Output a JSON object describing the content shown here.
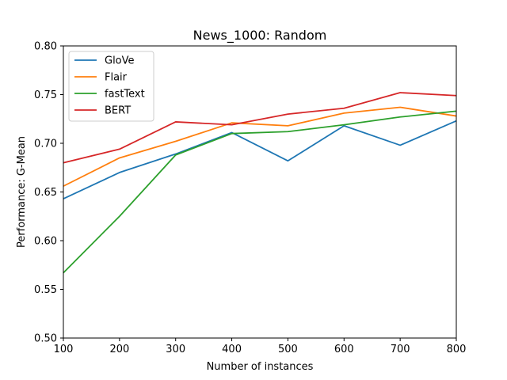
{
  "chart_data": {
    "type": "line",
    "title": "News_1000: Random",
    "xlabel": "Number of instances",
    "ylabel": "Performance: G-Mean",
    "xlim": [
      100,
      800
    ],
    "ylim": [
      0.5,
      0.8
    ],
    "x": [
      100,
      200,
      300,
      400,
      500,
      600,
      700,
      800
    ],
    "x_ticks": [
      "100",
      "200",
      "300",
      "400",
      "500",
      "600",
      "700",
      "800"
    ],
    "y_ticks": [
      "0.50",
      "0.55",
      "0.60",
      "0.65",
      "0.70",
      "0.75",
      "0.80"
    ],
    "grid": false,
    "legend_position": "upper-left",
    "series": [
      {
        "name": "GloVe",
        "color": "#1f77b4",
        "values": [
          0.643,
          0.67,
          0.689,
          0.711,
          0.682,
          0.718,
          0.698,
          0.723
        ]
      },
      {
        "name": "Flair",
        "color": "#ff7f0e",
        "values": [
          0.656,
          0.685,
          0.702,
          0.721,
          0.718,
          0.731,
          0.737,
          0.728
        ]
      },
      {
        "name": "fastText",
        "color": "#2ca02c",
        "values": [
          0.567,
          0.625,
          0.688,
          0.71,
          0.712,
          0.719,
          0.727,
          0.733
        ]
      },
      {
        "name": "BERT",
        "color": "#d62728",
        "values": [
          0.68,
          0.694,
          0.722,
          0.719,
          0.73,
          0.736,
          0.752,
          0.749
        ]
      }
    ]
  }
}
